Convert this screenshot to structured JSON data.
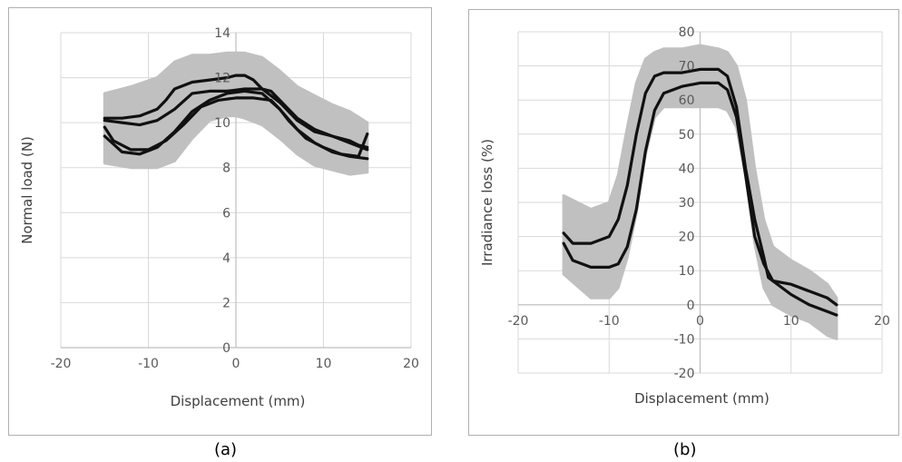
{
  "chart_data": [
    {
      "type": "line",
      "caption": "(a)",
      "xlabel": "Displacement (mm)",
      "ylabel": "Normal load (N)",
      "xlim": [
        -20,
        20
      ],
      "ylim": [
        0,
        14
      ],
      "xticks": [
        -20,
        -10,
        0,
        10,
        20
      ],
      "xtick_labels": [
        "-20",
        "-10",
        "0",
        "10",
        "20"
      ],
      "yticks": [
        0,
        2,
        4,
        6,
        8,
        10,
        12,
        14
      ],
      "ytick_labels": [
        "0",
        "2",
        "4",
        "6",
        "8",
        "10",
        "12",
        "14"
      ],
      "grid": true,
      "colors": {
        "band": "#c0c0c0",
        "line": "#111111",
        "grid": "#d9d9d9",
        "axis": "#bfbfbf"
      },
      "band": {
        "x": [
          -15,
          -12,
          -9,
          -7,
          -5,
          -3,
          -1,
          0,
          1,
          3,
          5,
          7,
          9,
          11,
          13,
          15
        ],
        "upper": [
          11.3,
          11.6,
          12.0,
          12.7,
          13.0,
          13.0,
          13.1,
          13.1,
          13.1,
          12.9,
          12.3,
          11.6,
          11.2,
          10.8,
          10.5,
          10.0
        ],
        "lower": [
          8.2,
          8.0,
          8.0,
          8.3,
          9.3,
          10.1,
          10.3,
          10.3,
          10.2,
          9.9,
          9.3,
          8.6,
          8.1,
          7.9,
          7.7,
          7.8
        ]
      },
      "series": [
        {
          "x": [
            -15,
            -13,
            -11,
            -9,
            -8,
            -7,
            -5,
            -3,
            -1,
            0,
            1,
            2,
            3,
            5,
            7,
            9,
            11,
            13,
            14,
            15
          ],
          "values": [
            10.2,
            10.2,
            10.3,
            10.6,
            11.0,
            11.5,
            11.8,
            11.9,
            12.0,
            12.1,
            12.1,
            11.9,
            11.5,
            10.9,
            10.1,
            9.6,
            9.4,
            9.2,
            9.0,
            8.9
          ]
        },
        {
          "x": [
            -15,
            -14,
            -12,
            -10,
            -8,
            -6,
            -4,
            -2,
            0,
            2,
            4,
            5,
            6,
            8,
            10,
            12,
            14,
            15
          ],
          "values": [
            9.8,
            9.2,
            8.8,
            8.8,
            9.2,
            9.9,
            10.7,
            11.0,
            11.1,
            11.1,
            11.0,
            10.6,
            10.1,
            9.3,
            8.9,
            8.6,
            8.5,
            9.5
          ]
        },
        {
          "x": [
            -15,
            -13,
            -11,
            -9,
            -7,
            -5,
            -3,
            -1,
            1,
            3,
            4,
            5,
            7,
            9,
            11,
            13,
            15
          ],
          "values": [
            10.1,
            10.0,
            9.9,
            10.1,
            10.6,
            11.3,
            11.4,
            11.4,
            11.5,
            11.5,
            11.4,
            11.0,
            10.2,
            9.7,
            9.4,
            9.1,
            8.8
          ]
        },
        {
          "x": [
            -15,
            -13,
            -11,
            -9,
            -7,
            -5,
            -3,
            -1,
            1,
            3,
            5,
            7,
            9,
            11,
            13,
            15
          ],
          "values": [
            9.4,
            8.7,
            8.6,
            8.9,
            9.6,
            10.5,
            11.0,
            11.3,
            11.4,
            11.3,
            10.6,
            9.7,
            9.1,
            8.7,
            8.5,
            8.4
          ]
        }
      ]
    },
    {
      "type": "line",
      "caption": "(b)",
      "xlabel": "Displacement (mm)",
      "ylabel": "Irradiance loss (%)",
      "xlim": [
        -20,
        20
      ],
      "ylim": [
        -20,
        80
      ],
      "xticks": [
        -20,
        -10,
        0,
        10,
        20
      ],
      "xtick_labels": [
        "-20",
        "-10",
        "0",
        "10",
        "20"
      ],
      "yticks": [
        -20,
        -10,
        0,
        10,
        20,
        30,
        40,
        50,
        60,
        70,
        80
      ],
      "ytick_labels": [
        "-20",
        "-10",
        "0",
        "10",
        "20",
        "30",
        "40",
        "50",
        "60",
        "70",
        "80"
      ],
      "grid": true,
      "colors": {
        "band": "#c0c0c0",
        "line": "#111111",
        "grid": "#d9d9d9",
        "axis": "#bfbfbf"
      },
      "band": {
        "x": [
          -15,
          -12,
          -10,
          -9,
          -8,
          -7,
          -6,
          -5,
          -4,
          -2,
          0,
          2,
          3,
          4,
          5,
          6,
          7,
          8,
          10,
          12,
          14,
          15
        ],
        "upper": [
          32,
          28,
          30,
          38,
          52,
          65,
          72,
          74,
          75,
          75,
          76,
          75,
          74,
          70,
          60,
          40,
          25,
          17,
          13,
          10,
          6,
          2
        ],
        "lower": [
          9,
          2,
          2,
          5,
          14,
          27,
          44,
          55,
          58,
          58,
          58,
          58,
          57,
          52,
          38,
          18,
          5,
          0,
          -3,
          -5,
          -9,
          -10
        ]
      },
      "series": [
        {
          "x": [
            -15,
            -14,
            -12,
            -10,
            -9,
            -8,
            -7,
            -6,
            -5,
            -4,
            -2,
            0,
            2,
            3,
            4,
            5,
            6,
            7,
            7.5,
            8,
            10,
            12,
            14,
            15
          ],
          "values": [
            21,
            18,
            18,
            20,
            25,
            35,
            50,
            62,
            67,
            68,
            68,
            69,
            69,
            67,
            58,
            40,
            25,
            14,
            8,
            7,
            6,
            4,
            2,
            0
          ]
        },
        {
          "x": [
            -15,
            -14,
            -12,
            -10,
            -9,
            -8,
            -7,
            -6,
            -5,
            -4,
            -2,
            0,
            2,
            3,
            4,
            5,
            6,
            7,
            8,
            10,
            12,
            14,
            15
          ],
          "values": [
            18,
            13,
            11,
            11,
            12,
            17,
            28,
            45,
            57,
            62,
            64,
            65,
            65,
            63,
            55,
            38,
            20,
            12,
            7,
            3,
            0,
            -2,
            -3
          ]
        }
      ]
    }
  ]
}
